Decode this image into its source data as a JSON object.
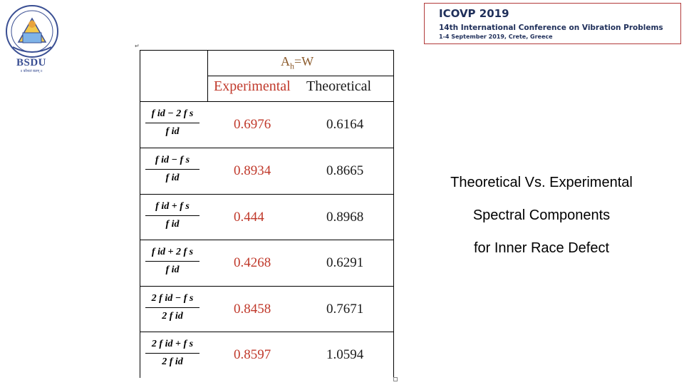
{
  "logo": {
    "name": "BSDU",
    "tagline": "॥ कौशलं बलम् ॥"
  },
  "banner": {
    "title": "ICOVP 2019",
    "subtitle": "14th International Conference on Vibration Problems",
    "date": "1-4 September 2019, Crete, Greece"
  },
  "table": {
    "group_header": "Ah=W",
    "group_header_base": "A",
    "group_header_sub": "h",
    "group_header_rest": "=W",
    "col_experimental": "Experimental",
    "col_theoretical": "Theoretical",
    "rows": [
      {
        "num": "f id − 2 f s",
        "den": "f id",
        "experimental": "0.6976",
        "theoretical": "0.6164"
      },
      {
        "num": "f id − f s",
        "den": "f id",
        "experimental": "0.8934",
        "theoretical": "0.8665"
      },
      {
        "num": "f id + f s",
        "den": "f id",
        "experimental": "0.444",
        "theoretical": "0.8968"
      },
      {
        "num": "f id + 2 f s",
        "den": "f id",
        "experimental": "0.4268",
        "theoretical": "0.6291"
      },
      {
        "num": "2 f id − f s",
        "den": "2 f id",
        "experimental": "0.8458",
        "theoretical": "0.7671"
      },
      {
        "num": "2 f id + f s",
        "den": "2 f id",
        "experimental": "0.8597",
        "theoretical": "1.0594"
      }
    ]
  },
  "caption": {
    "line1": "Theoretical Vs. Experimental",
    "line2": "Spectral Components",
    "line3": "for Inner Race Defect"
  },
  "colors": {
    "experimental": "#c0392b",
    "header_ah": "#8b5a2b",
    "banner_text": "#1f2f5a",
    "banner_border": "#b23a3a",
    "logo": "#3a4f93"
  }
}
